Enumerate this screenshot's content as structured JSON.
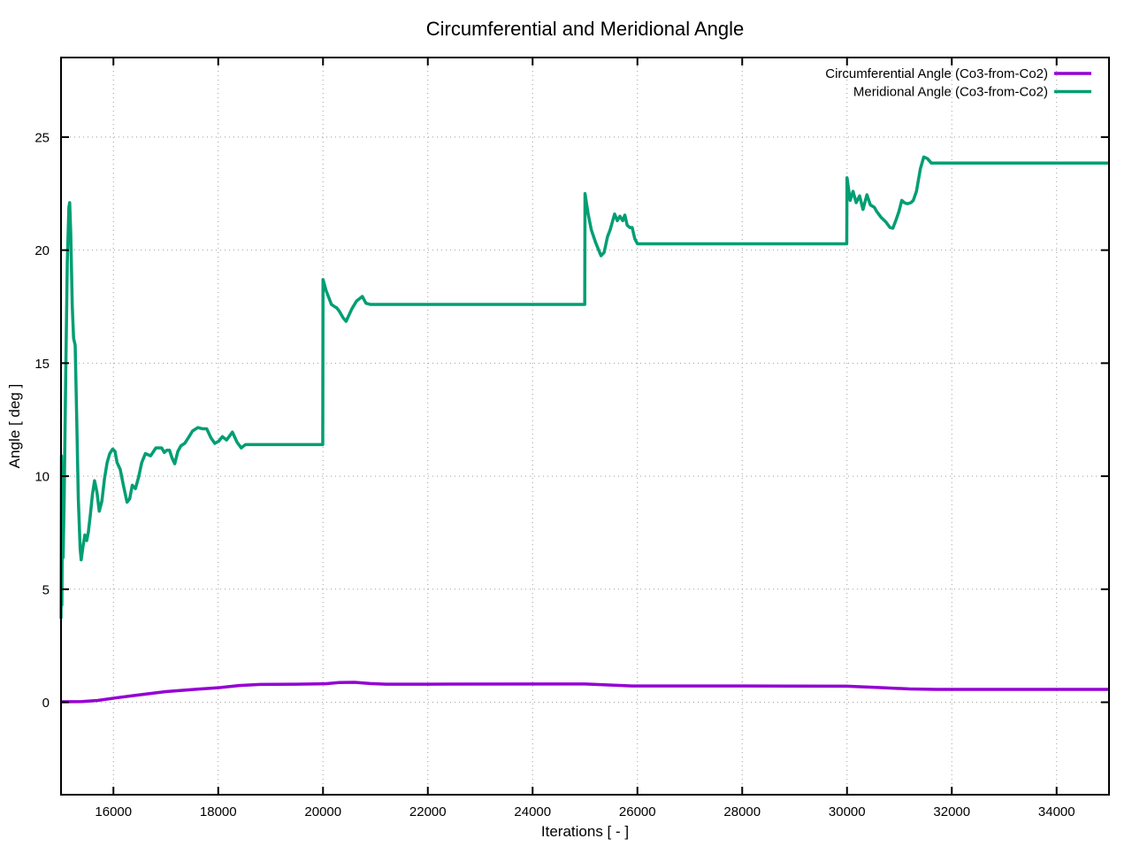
{
  "chart_data": {
    "type": "line",
    "title": "Circumferential and Meridional Angle",
    "xlabel": "Iterations [ - ]",
    "ylabel": "Angle [ deg ]",
    "xlim": [
      15000,
      35000
    ],
    "ylim": [
      -4.09,
      28.52
    ],
    "x_ticks": [
      16000,
      18000,
      20000,
      22000,
      24000,
      26000,
      28000,
      30000,
      32000,
      34000
    ],
    "y_ticks": [
      0,
      5,
      10,
      15,
      20,
      25
    ],
    "grid": "dotted-major-both-axes",
    "legend_position": "top-right-inside",
    "colors": {
      "circumferential": "#9400d3",
      "meridional": "#009e73",
      "grid": "#9e9e9e",
      "axis": "#000000",
      "background": "#ffffff"
    },
    "series": [
      {
        "name": "Circumferential Angle (Co3-from-Co2)",
        "color": "#9400d3",
        "points": [
          [
            15000,
            0.02
          ],
          [
            15400,
            0.03
          ],
          [
            15700,
            0.08
          ],
          [
            16000,
            0.18
          ],
          [
            16400,
            0.3
          ],
          [
            17000,
            0.47
          ],
          [
            17600,
            0.58
          ],
          [
            18000,
            0.64
          ],
          [
            18400,
            0.74
          ],
          [
            18800,
            0.79
          ],
          [
            19500,
            0.8
          ],
          [
            20050,
            0.82
          ],
          [
            20300,
            0.87
          ],
          [
            20600,
            0.88
          ],
          [
            20900,
            0.83
          ],
          [
            21200,
            0.8
          ],
          [
            22000,
            0.8
          ],
          [
            25000,
            0.81
          ],
          [
            25500,
            0.76
          ],
          [
            25900,
            0.72
          ],
          [
            28000,
            0.72
          ],
          [
            30000,
            0.71
          ],
          [
            30600,
            0.65
          ],
          [
            31200,
            0.59
          ],
          [
            31700,
            0.57
          ],
          [
            35000,
            0.57
          ]
        ]
      },
      {
        "name": "Meridional Angle (Co3-from-Co2)",
        "color": "#009e73",
        "points": [
          [
            15000,
            3.7
          ],
          [
            15008,
            10.9
          ],
          [
            15016,
            4.3
          ],
          [
            15028,
            8.7
          ],
          [
            15040,
            6.4
          ],
          [
            15060,
            9.0
          ],
          [
            15090,
            14.5
          ],
          [
            15120,
            19.5
          ],
          [
            15150,
            21.9
          ],
          [
            15165,
            22.1
          ],
          [
            15185,
            20.8
          ],
          [
            15215,
            17.5
          ],
          [
            15240,
            16.1
          ],
          [
            15270,
            15.8
          ],
          [
            15300,
            12.5
          ],
          [
            15330,
            9.0
          ],
          [
            15365,
            6.8
          ],
          [
            15385,
            6.3
          ],
          [
            15420,
            6.9
          ],
          [
            15455,
            7.4
          ],
          [
            15490,
            7.15
          ],
          [
            15520,
            7.5
          ],
          [
            15560,
            8.3
          ],
          [
            15600,
            9.2
          ],
          [
            15640,
            9.8
          ],
          [
            15685,
            9.3
          ],
          [
            15730,
            8.45
          ],
          [
            15780,
            8.9
          ],
          [
            15830,
            9.9
          ],
          [
            15880,
            10.6
          ],
          [
            15930,
            11.0
          ],
          [
            15985,
            11.2
          ],
          [
            16030,
            11.1
          ],
          [
            16070,
            10.6
          ],
          [
            16130,
            10.3
          ],
          [
            16190,
            9.6
          ],
          [
            16260,
            8.85
          ],
          [
            16310,
            9.0
          ],
          [
            16360,
            9.6
          ],
          [
            16420,
            9.45
          ],
          [
            16480,
            9.95
          ],
          [
            16540,
            10.6
          ],
          [
            16610,
            11.0
          ],
          [
            16710,
            10.9
          ],
          [
            16810,
            11.25
          ],
          [
            16920,
            11.25
          ],
          [
            16970,
            11.05
          ],
          [
            17020,
            11.15
          ],
          [
            17070,
            11.15
          ],
          [
            17120,
            10.8
          ],
          [
            17170,
            10.55
          ],
          [
            17230,
            11.1
          ],
          [
            17290,
            11.35
          ],
          [
            17360,
            11.45
          ],
          [
            17430,
            11.7
          ],
          [
            17510,
            12.0
          ],
          [
            17610,
            12.15
          ],
          [
            17700,
            12.1
          ],
          [
            17780,
            12.1
          ],
          [
            17860,
            11.7
          ],
          [
            17935,
            11.45
          ],
          [
            18010,
            11.55
          ],
          [
            18080,
            11.75
          ],
          [
            18160,
            11.6
          ],
          [
            18270,
            11.95
          ],
          [
            18360,
            11.5
          ],
          [
            18440,
            11.25
          ],
          [
            18520,
            11.4
          ],
          [
            19995,
            11.4
          ],
          [
            20000,
            18.7
          ],
          [
            20060,
            18.2
          ],
          [
            20110,
            17.9
          ],
          [
            20160,
            17.6
          ],
          [
            20220,
            17.5
          ],
          [
            20260,
            17.45
          ],
          [
            20310,
            17.3
          ],
          [
            20385,
            17.0
          ],
          [
            20440,
            16.85
          ],
          [
            20550,
            17.4
          ],
          [
            20640,
            17.75
          ],
          [
            20750,
            17.95
          ],
          [
            20820,
            17.65
          ],
          [
            20900,
            17.6
          ],
          [
            24995,
            17.6
          ],
          [
            25000,
            22.5
          ],
          [
            25060,
            21.6
          ],
          [
            25120,
            20.9
          ],
          [
            25200,
            20.35
          ],
          [
            25305,
            19.75
          ],
          [
            25365,
            19.9
          ],
          [
            25430,
            20.6
          ],
          [
            25480,
            20.9
          ],
          [
            25565,
            21.6
          ],
          [
            25615,
            21.3
          ],
          [
            25665,
            21.5
          ],
          [
            25720,
            21.3
          ],
          [
            25760,
            21.55
          ],
          [
            25805,
            21.1
          ],
          [
            25855,
            21.0
          ],
          [
            25900,
            21.0
          ],
          [
            25950,
            20.5
          ],
          [
            26000,
            20.28
          ],
          [
            29995,
            20.28
          ],
          [
            30000,
            23.2
          ],
          [
            30060,
            22.2
          ],
          [
            30115,
            22.6
          ],
          [
            30175,
            22.1
          ],
          [
            30240,
            22.4
          ],
          [
            30305,
            21.8
          ],
          [
            30380,
            22.45
          ],
          [
            30445,
            22.0
          ],
          [
            30520,
            21.9
          ],
          [
            30570,
            21.7
          ],
          [
            30650,
            21.45
          ],
          [
            30740,
            21.25
          ],
          [
            30820,
            21.0
          ],
          [
            30875,
            20.97
          ],
          [
            30930,
            21.3
          ],
          [
            30990,
            21.7
          ],
          [
            31045,
            22.2
          ],
          [
            31095,
            22.1
          ],
          [
            31150,
            22.05
          ],
          [
            31220,
            22.1
          ],
          [
            31265,
            22.2
          ],
          [
            31325,
            22.6
          ],
          [
            31400,
            23.6
          ],
          [
            31465,
            24.12
          ],
          [
            31535,
            24.05
          ],
          [
            31610,
            23.85
          ],
          [
            35000,
            23.85
          ]
        ]
      }
    ]
  }
}
